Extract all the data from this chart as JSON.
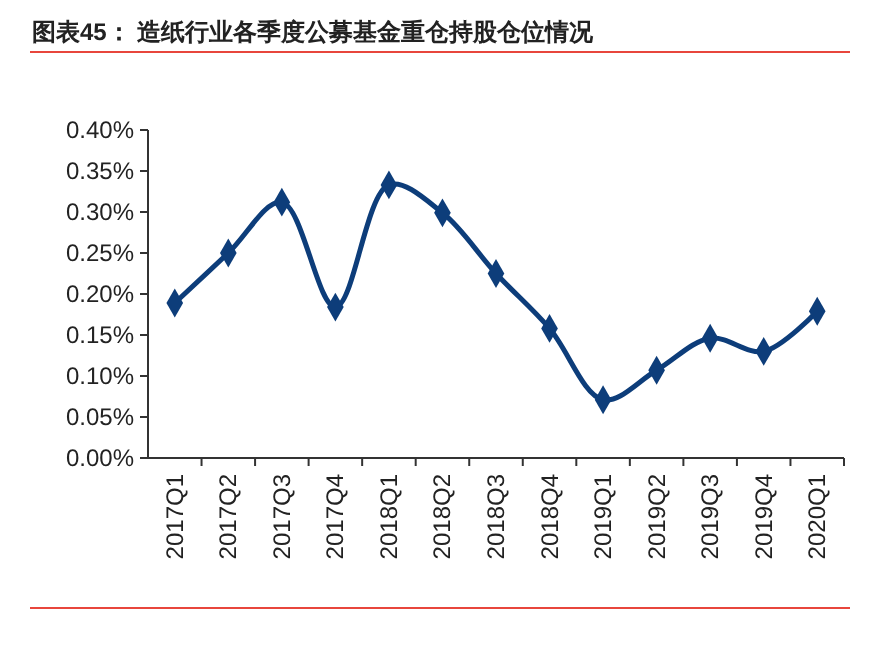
{
  "chart_data": {
    "type": "line",
    "title": "图表45：  造纸行业各季度公募基金重仓持股仓位情况",
    "categories": [
      "2017Q1",
      "2017Q2",
      "2017Q3",
      "2017Q4",
      "2018Q1",
      "2018Q2",
      "2018Q3",
      "2018Q4",
      "2019Q1",
      "2019Q2",
      "2019Q3",
      "2019Q4",
      "2020Q1"
    ],
    "series": [
      {
        "color": "#0d3d7a",
        "values": [
          0.189,
          0.25,
          0.312,
          0.184,
          0.333,
          0.299,
          0.225,
          0.158,
          0.071,
          0.107,
          0.146,
          0.13,
          0.179
        ]
      }
    ],
    "ylim": [
      0,
      0.4
    ],
    "yticks": [
      {
        "value": 0,
        "label": "0.00%"
      },
      {
        "value": 0.05,
        "label": "0.05%"
      },
      {
        "value": 0.1,
        "label": "0.10%"
      },
      {
        "value": 0.15,
        "label": "0.15%"
      },
      {
        "value": 0.2,
        "label": "0.20%"
      },
      {
        "value": 0.25,
        "label": "0.25%"
      },
      {
        "value": 0.3,
        "label": "0.30%"
      },
      {
        "value": 0.35,
        "label": "0.35%"
      },
      {
        "value": 0.4,
        "label": "0.40%"
      }
    ],
    "marker": "diamond",
    "line_style": "solid",
    "grid": false
  }
}
